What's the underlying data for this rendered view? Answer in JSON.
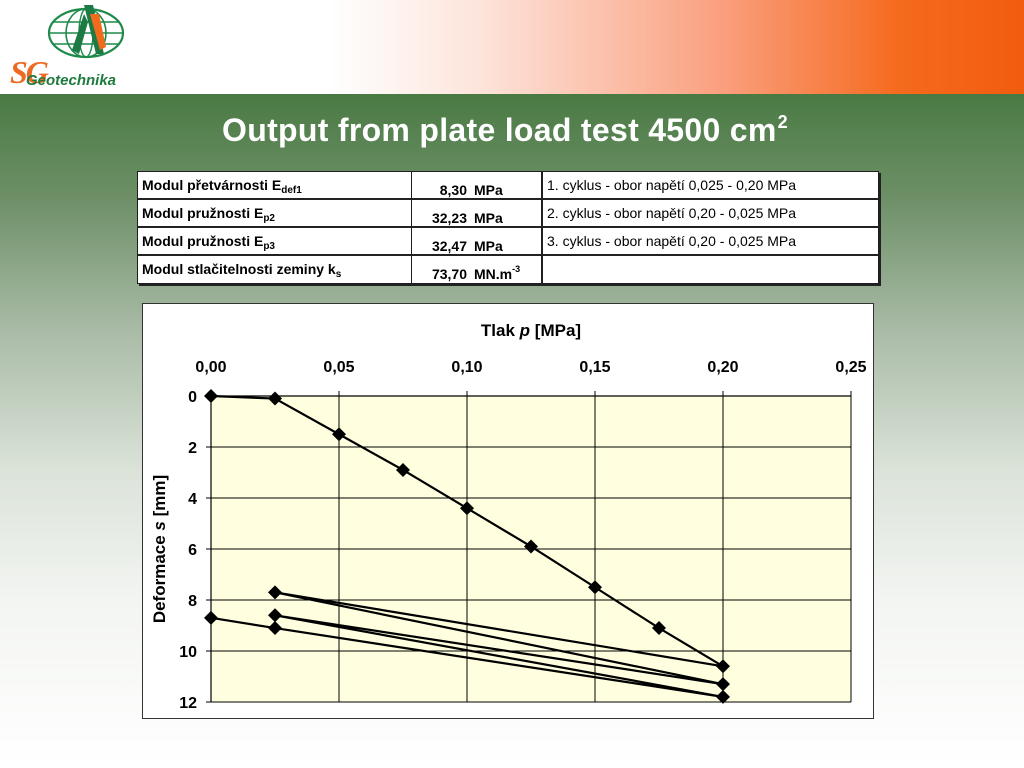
{
  "logo": {
    "name": "SG Geotechnika",
    "letters": "SG",
    "text": "Geotechnika",
    "icon": "globe-logo-icon"
  },
  "slide": {
    "title": "Output from plate load test 4500 cm",
    "title_sup": "2"
  },
  "table": {
    "rows": [
      {
        "label": "Modul  přetvárnosti E",
        "sub": "def1",
        "value": "8,30",
        "unit": "MPa",
        "unit_sup": "",
        "note": "1. cyklus - obor napětí 0,025 - 0,20 MPa"
      },
      {
        "label": "Modul  pružnosti E",
        "sub": "p2",
        "value": "32,23",
        "unit": "MPa",
        "unit_sup": "",
        "note": "2. cyklus - obor napětí 0,20 - 0,025 MPa"
      },
      {
        "label": "Modul  pružnosti E",
        "sub": "p3",
        "value": "32,47",
        "unit": "MPa",
        "unit_sup": "",
        "note": "3. cyklus - obor napětí 0,20 - 0,025 MPa"
      },
      {
        "label": "Modul  stlačitelnosti  zeminy  k",
        "sub": "s",
        "value": "73,70",
        "unit": "MN.m",
        "unit_sup": "-3",
        "note": ""
      }
    ]
  },
  "colors": {
    "plot_bg": "#ffffe0",
    "line": "#000000",
    "grid": "#000000"
  },
  "chart_data": {
    "type": "line",
    "title": "",
    "xlabel_prefix": "Tlak ",
    "xlabel_var": "p",
    "xlabel_suffix": " [MPa]",
    "ylabel_prefix": "Deformace ",
    "ylabel_var": "s",
    "ylabel_suffix": " [mm]",
    "x_axis_position": "top",
    "y_axis_inverted": true,
    "xlim": [
      0,
      0.25
    ],
    "ylim": [
      0,
      12
    ],
    "x_ticks": [
      0,
      0.05,
      0.1,
      0.15,
      0.2,
      0.25
    ],
    "x_tick_labels": [
      "0,00",
      "0,05",
      "0,10",
      "0,15",
      "0,20",
      "0,25"
    ],
    "y_ticks": [
      0,
      2,
      4,
      6,
      8,
      10,
      12
    ],
    "y_tick_labels": [
      "0",
      "2",
      "4",
      "6",
      "8",
      "10",
      "12"
    ],
    "grid": true,
    "marker": "diamond",
    "x": [
      0,
      0.025,
      0.05,
      0.075,
      0.1,
      0.125,
      0.15,
      0.175,
      0.2,
      0.025,
      0.2,
      0.025,
      0.2,
      0.025,
      0.0
    ],
    "y": [
      0,
      0.1,
      1.5,
      2.9,
      4.4,
      5.9,
      7.5,
      9.1,
      10.6,
      7.7,
      11.3,
      8.6,
      11.8,
      9.1,
      8.7
    ]
  }
}
